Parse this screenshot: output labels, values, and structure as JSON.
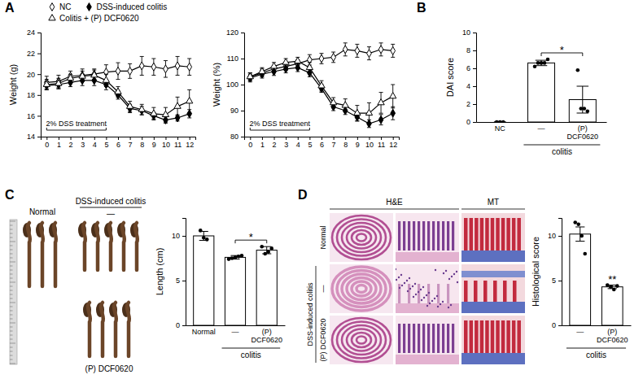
{
  "chart_data": [
    {
      "type": "line",
      "y_label": "Weight (g)",
      "x": [
        0,
        1,
        2,
        3,
        4,
        5,
        6,
        7,
        8,
        9,
        10,
        11,
        12
      ],
      "xlim": [
        -0.5,
        12.5
      ],
      "xticks": [
        0,
        1,
        2,
        3,
        4,
        5,
        6,
        7,
        8,
        9,
        10,
        11,
        12
      ],
      "ylim": [
        14,
        24
      ],
      "yticks": [
        14,
        16,
        18,
        20,
        22,
        24
      ],
      "legend": "top",
      "annotations": [
        {
          "text": "2% DSS treatment",
          "x": [
            0,
            5
          ]
        }
      ],
      "series": [
        {
          "name": "NC",
          "color": "#000000",
          "marker": "diamond-open",
          "values": [
            19.2,
            19.3,
            19.8,
            19.9,
            20.0,
            20.2,
            20.3,
            20.3,
            20.8,
            20.7,
            20.5,
            20.8,
            20.7
          ],
          "errors": [
            0.6,
            0.6,
            0.5,
            0.6,
            0.5,
            0.7,
            0.8,
            0.7,
            0.9,
            0.8,
            0.8,
            0.9,
            0.8
          ]
        },
        {
          "name": "DSS-induced colitis",
          "color": "#000000",
          "marker": "diamond",
          "values": [
            18.9,
            19.0,
            19.2,
            19.4,
            19.4,
            19.0,
            18.0,
            16.7,
            16.5,
            16.0,
            15.6,
            15.8,
            16.2
          ],
          "errors": [
            0.4,
            0.4,
            0.4,
            0.5,
            0.5,
            0.5,
            0.4,
            0.4,
            0.4,
            0.3,
            0.3,
            0.3,
            0.4
          ]
        },
        {
          "name": "Colitis + (P) DCF0620",
          "color": "#000000",
          "marker": "triangle-open",
          "values": [
            19.0,
            19.1,
            19.6,
            19.8,
            19.9,
            19.4,
            18.3,
            16.9,
            16.6,
            16.2,
            16.1,
            16.9,
            17.4
          ],
          "errors": [
            0.5,
            0.5,
            0.4,
            0.5,
            0.5,
            0.6,
            0.5,
            0.5,
            0.5,
            0.6,
            0.7,
            0.9,
            1.1
          ]
        }
      ]
    },
    {
      "type": "line",
      "y_label": "Weight (%)",
      "x": [
        0,
        1,
        2,
        3,
        4,
        5,
        6,
        7,
        8,
        9,
        10,
        11,
        12
      ],
      "xlim": [
        -0.5,
        12.5
      ],
      "xticks": [
        0,
        1,
        2,
        3,
        4,
        5,
        6,
        7,
        8,
        9,
        10,
        11,
        12
      ],
      "ylim": [
        80,
        120
      ],
      "yticks": [
        80,
        90,
        100,
        110,
        120
      ],
      "annotations": [
        {
          "text": "2% DSS treatment",
          "x": [
            0,
            5
          ]
        }
      ],
      "series": [
        {
          "color": "#000000",
          "marker": "diamond-open",
          "values": [
            103,
            104.5,
            106,
            107,
            108,
            109.5,
            110,
            110.5,
            113.5,
            113,
            112,
            113.5,
            113
          ],
          "errors": [
            1.5,
            1.5,
            1.2,
            1.5,
            1.5,
            2,
            2,
            2,
            2.5,
            2.5,
            2.5,
            2.5,
            2.5
          ]
        },
        {
          "color": "#000000",
          "marker": "diamond",
          "values": [
            102.5,
            104,
            105,
            106,
            106.5,
            104.5,
            98.5,
            91.5,
            90,
            87.5,
            85,
            86.5,
            89
          ],
          "errors": [
            1.5,
            1.5,
            1.5,
            1.5,
            1.5,
            1.5,
            1.5,
            1.5,
            1.5,
            1.5,
            1.5,
            2,
            2.5
          ]
        },
        {
          "color": "#000000",
          "marker": "triangle-open",
          "values": [
            103,
            105,
            107,
            108.5,
            109,
            106.5,
            99.5,
            93,
            92,
            89,
            89,
            93,
            95.5
          ],
          "errors": [
            1.5,
            1.5,
            1.5,
            1.5,
            1.5,
            2,
            2,
            2,
            2.5,
            3,
            4,
            4,
            4.5
          ]
        }
      ]
    },
    {
      "type": "bar",
      "y_label": "DAI score",
      "categories": [
        "NC",
        "—",
        "(P) DCF0620"
      ],
      "values": [
        0,
        6.6,
        2.5
      ],
      "errors": [
        0,
        0.3,
        1.5
      ],
      "points": [
        [
          0,
          0,
          0
        ],
        [
          6.2,
          6.6,
          6.6,
          6.6,
          7.0
        ],
        [
          5.8,
          1.5,
          1.5,
          1.2
        ]
      ],
      "color": "#ffffff",
      "ylim": [
        0,
        10
      ],
      "yticks": [
        0,
        2,
        4,
        6,
        8,
        10
      ],
      "group": {
        "label": "colitis",
        "categories": [
          1,
          2
        ]
      },
      "comparisons": [
        {
          "groups": [
            1,
            2
          ],
          "label": "*"
        }
      ]
    },
    {
      "type": "bar",
      "y_label": "Length (cm)",
      "categories": [
        "Normal",
        "—",
        "(P) DCF0620"
      ],
      "values": [
        10,
        7.6,
        8.4
      ],
      "errors": [
        0.5,
        0.2,
        0.4
      ],
      "points": [
        [
          10.6,
          9.8,
          9.6
        ],
        [
          7.4,
          7.5,
          7.6,
          7.7,
          7.8
        ],
        [
          8.8,
          8.0,
          8.2,
          8.6
        ]
      ],
      "color": "#ffffff",
      "ylim": [
        0,
        12
      ],
      "yticks": [
        0,
        5,
        10
      ],
      "group": {
        "label": "colitis",
        "categories": [
          1,
          2
        ]
      },
      "comparisons": [
        {
          "groups": [
            1,
            2
          ],
          "label": "*"
        }
      ]
    },
    {
      "type": "bar",
      "y_label": "Histological score",
      "categories": [
        "—",
        "(P) DCF0620"
      ],
      "values": [
        10.2,
        4.3
      ],
      "errors": [
        0.8,
        0.2
      ],
      "points": [
        [
          11.5,
          11.3,
          10,
          8
        ],
        [
          4.5,
          4.3,
          4.0,
          4.4
        ]
      ],
      "color": "#ffffff",
      "ylim": [
        0,
        12
      ],
      "yticks": [
        0,
        5,
        10
      ],
      "group": {
        "label": "colitis",
        "categories": [
          0,
          1
        ]
      },
      "comparisons": [
        {
          "groups": [
            1
          ],
          "label": "**"
        }
      ]
    }
  ],
  "figure": {
    "letters": [
      "A",
      "B",
      "C",
      "D"
    ],
    "photo": {
      "normal": "Normal",
      "group": "DSS-induced colitis",
      "untreated": "—",
      "treated": "(P) DCF0620"
    },
    "histology": {
      "columns": [
        "H&E",
        "MT"
      ],
      "rows": [
        "Normal",
        "—",
        "(P) DCF0620"
      ],
      "group": "DSS-induced colitis"
    }
  }
}
